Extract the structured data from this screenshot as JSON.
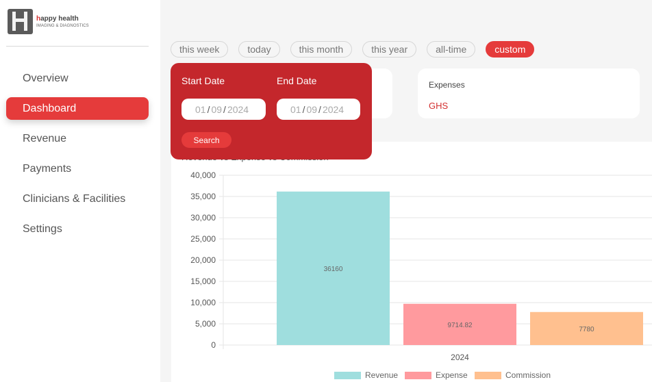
{
  "brand": {
    "name_highlight": "h",
    "name_rest": "appy health",
    "subtitle": "IMAGING & DIAGNOSTICS"
  },
  "nav": [
    {
      "label": "Overview",
      "active": false
    },
    {
      "label": "Dashboard",
      "active": true
    },
    {
      "label": "Revenue",
      "active": false
    },
    {
      "label": "Payments",
      "active": false
    },
    {
      "label": "Clinicians & Facilities",
      "active": false
    },
    {
      "label": "Settings",
      "active": false
    }
  ],
  "filters": [
    "this week",
    "today",
    "this month",
    "this year",
    "all-time",
    "custom"
  ],
  "active_filter": "custom",
  "date_panel": {
    "start_label": "Start Date",
    "end_label": "End Date",
    "start": {
      "day": "01",
      "month": "09",
      "year": "2024"
    },
    "end": {
      "day": "01",
      "month": "09",
      "year": "2024"
    },
    "search_label": "Search"
  },
  "cards": {
    "expenses": {
      "label": "Expenses",
      "value": "GHS"
    }
  },
  "chart": {
    "title": "Revenue vs Expense vs Commission"
  },
  "chart_data": {
    "type": "bar",
    "categories": [
      "2024"
    ],
    "series": [
      {
        "name": "Revenue",
        "values": [
          36160
        ],
        "color": "#9fdede",
        "label": "36160"
      },
      {
        "name": "Expense",
        "values": [
          9714.82
        ],
        "color": "#ff9a9e",
        "label": "9714.82"
      },
      {
        "name": "Commission",
        "values": [
          7780
        ],
        "color": "#ffc08f",
        "label": "7780"
      }
    ],
    "yticks": [
      "0",
      "5,000",
      "10,000",
      "15,000",
      "20,000",
      "25,000",
      "30,000",
      "35,000",
      "40,000"
    ],
    "ylim": [
      0,
      40000
    ],
    "grid": true,
    "legend": "bottom"
  },
  "colors": {
    "accent": "#e53b3b",
    "panel": "#c4272c",
    "value_red": "#d32f2f"
  }
}
